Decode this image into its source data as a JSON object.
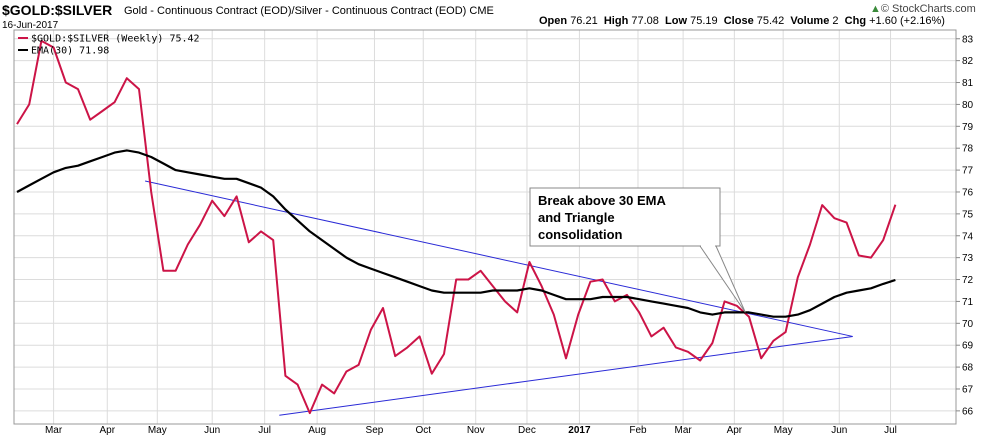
{
  "header": {
    "symbol": "$GOLD:$SILVER",
    "description": "Gold - Continuous Contract (EOD)/Silver - Continuous Contract (EOD)",
    "exchange": "CME",
    "date": "16-Jun-2017",
    "open_label": "Open",
    "open": "76.21",
    "high_label": "High",
    "high": "77.08",
    "low_label": "Low",
    "low": "75.19",
    "close_label": "Close",
    "close": "75.42",
    "volume_label": "Volume",
    "volume": "2",
    "chg_label": "Chg",
    "chg": "+1.60 (+2.16%)",
    "brand": "© StockCharts.com",
    "brand_icon": "arrow-up-icon"
  },
  "colors": {
    "price": "#cc1447",
    "ema": "#000000",
    "trend": "#2a2ad6",
    "grid": "#dcdcdc"
  },
  "chart_data": {
    "type": "line",
    "title": "$GOLD:$SILVER",
    "ylim": [
      65.4,
      83.4
    ],
    "yticks": [
      66,
      67,
      68,
      69,
      70,
      71,
      72,
      73,
      74,
      75,
      76,
      77,
      78,
      79,
      80,
      81,
      82,
      83
    ],
    "x_range": [
      0,
      70
    ],
    "month_ticks": [
      {
        "label": "Mar",
        "x": 3
      },
      {
        "label": "Apr",
        "x": 7.4
      },
      {
        "label": "May",
        "x": 11.5
      },
      {
        "label": "Jun",
        "x": 16
      },
      {
        "label": "Jul",
        "x": 20.3
      },
      {
        "label": "Aug",
        "x": 24.6
      },
      {
        "label": "Sep",
        "x": 29.3
      },
      {
        "label": "Oct",
        "x": 33.3
      },
      {
        "label": "Nov",
        "x": 37.6
      },
      {
        "label": "Dec",
        "x": 41.8
      },
      {
        "label": "2017",
        "x": 46.1,
        "bold": true
      },
      {
        "label": "Feb",
        "x": 50.9
      },
      {
        "label": "Mar",
        "x": 54.6
      },
      {
        "label": "Apr",
        "x": 58.8
      },
      {
        "label": "May",
        "x": 62.8
      },
      {
        "label": "Jun",
        "x": 67.4
      },
      {
        "label": "Jul",
        "x": 71.6
      }
    ],
    "series": [
      {
        "name": "$GOLD:$SILVER (Weekly) 75.42",
        "values": [
          79.1,
          80.0,
          82.9,
          82.6,
          81.0,
          80.7,
          79.3,
          79.7,
          80.1,
          81.2,
          80.7,
          76.0,
          72.4,
          72.4,
          73.6,
          74.5,
          75.6,
          74.9,
          75.8,
          73.7,
          74.2,
          73.8,
          67.6,
          67.2,
          65.9,
          67.2,
          66.8,
          67.8,
          68.1,
          69.7,
          70.7,
          68.5,
          68.9,
          69.4,
          67.7,
          68.6,
          72.0,
          72.0,
          72.4,
          71.7,
          71.0,
          70.5,
          72.8,
          71.7,
          70.4,
          68.4,
          70.4,
          71.9,
          72.0,
          71.0,
          71.3,
          70.5,
          69.4,
          69.8,
          68.9,
          68.7,
          68.3,
          69.1,
          71.0,
          70.8,
          70.3,
          68.4,
          69.2,
          69.6,
          72.1,
          73.6,
          75.4,
          74.8,
          74.6,
          73.1,
          73.0,
          73.8,
          75.42
        ]
      },
      {
        "name": "EMA(30) 71.98",
        "values": [
          76.0,
          76.3,
          76.6,
          76.9,
          77.1,
          77.2,
          77.4,
          77.6,
          77.8,
          77.9,
          77.8,
          77.6,
          77.3,
          77.0,
          76.9,
          76.8,
          76.7,
          76.6,
          76.6,
          76.4,
          76.2,
          75.8,
          75.2,
          74.7,
          74.2,
          73.8,
          73.4,
          73.0,
          72.7,
          72.5,
          72.3,
          72.1,
          71.9,
          71.7,
          71.5,
          71.4,
          71.4,
          71.4,
          71.4,
          71.5,
          71.5,
          71.5,
          71.6,
          71.5,
          71.3,
          71.1,
          71.1,
          71.1,
          71.2,
          71.2,
          71.2,
          71.1,
          71.0,
          70.9,
          70.8,
          70.7,
          70.5,
          70.4,
          70.5,
          70.5,
          70.5,
          70.4,
          70.3,
          70.3,
          70.4,
          70.6,
          70.9,
          71.2,
          71.4,
          71.5,
          71.6,
          71.8,
          71.98
        ]
      }
    ],
    "trendlines": [
      {
        "from": [
          10.5,
          76.5
        ],
        "to": [
          68.5,
          69.4
        ]
      },
      {
        "from": [
          21.5,
          65.8
        ],
        "to": [
          68.5,
          69.4
        ]
      }
    ],
    "annotation": {
      "lines": [
        "Break above 30 EMA",
        "and Triangle",
        "consolidation"
      ],
      "target": [
        59.7,
        70.5
      ]
    },
    "grid": true,
    "legend": "top-left"
  }
}
